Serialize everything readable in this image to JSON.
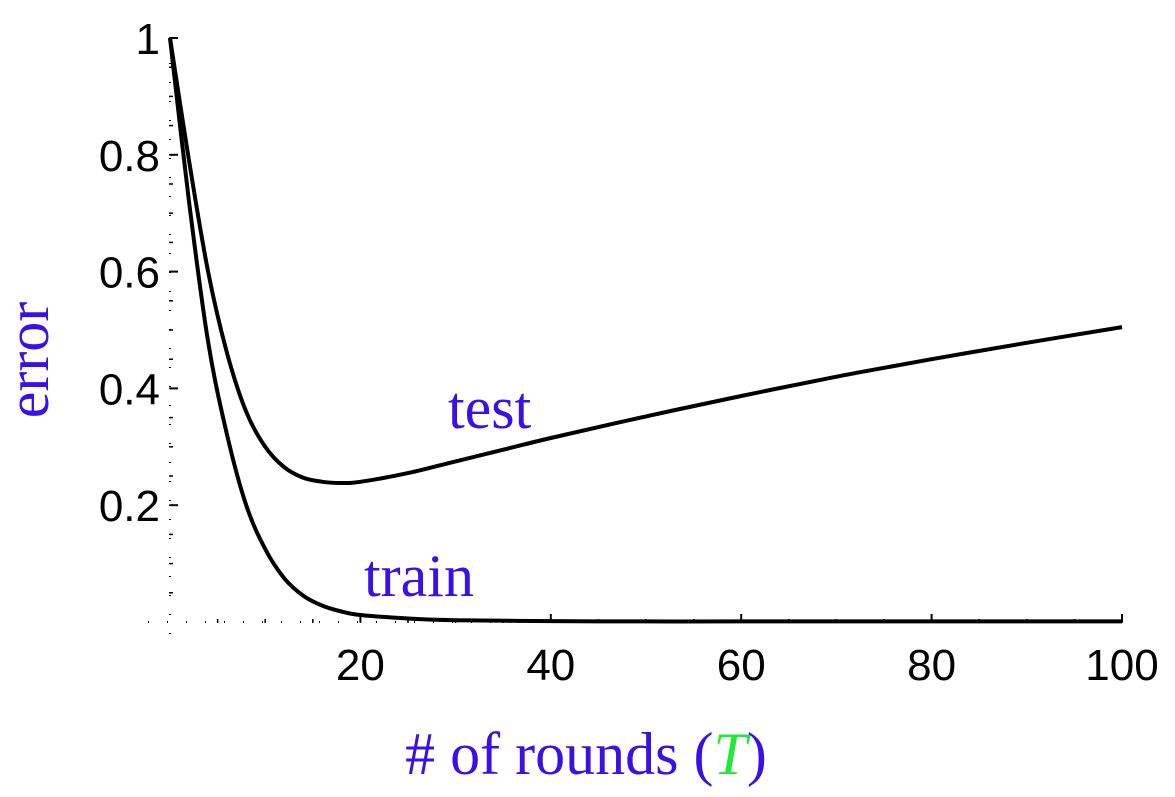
{
  "chart_data": {
    "type": "line",
    "title": "",
    "xlabel": {
      "prefix": "# of rounds (",
      "variable": "T",
      "suffix": ")"
    },
    "ylabel": "error",
    "xlim": [
      0,
      100
    ],
    "ylim": [
      0,
      1
    ],
    "x_ticks": [
      {
        "value": 20,
        "label": "20"
      },
      {
        "value": 40,
        "label": "40"
      },
      {
        "value": 60,
        "label": "60"
      },
      {
        "value": 80,
        "label": "80"
      },
      {
        "value": 100,
        "label": "100"
      }
    ],
    "y_ticks": [
      {
        "value": 0.2,
        "label": "0.2"
      },
      {
        "value": 0.4,
        "label": "0.4"
      },
      {
        "value": 0.6,
        "label": "0.6"
      },
      {
        "value": 0.8,
        "label": "0.8"
      },
      {
        "value": 1,
        "label": "1"
      }
    ],
    "grid": false,
    "series": [
      {
        "name": "test",
        "label": "test",
        "x": [
          0,
          2,
          4,
          6,
          8,
          10,
          12,
          14,
          16,
          18,
          20,
          25,
          30,
          35,
          40,
          50,
          60,
          70,
          80,
          90,
          100
        ],
        "values": [
          1.0,
          0.79,
          0.6,
          0.46,
          0.36,
          0.3,
          0.265,
          0.247,
          0.24,
          0.238,
          0.24,
          0.255,
          0.275,
          0.295,
          0.315,
          0.352,
          0.387,
          0.42,
          0.45,
          0.478,
          0.505
        ]
      },
      {
        "name": "train",
        "label": "train",
        "x": [
          0,
          2,
          4,
          6,
          8,
          10,
          12,
          14,
          16,
          18,
          20,
          25,
          30,
          40,
          50,
          60,
          80,
          100
        ],
        "values": [
          1.0,
          0.72,
          0.48,
          0.32,
          0.2,
          0.125,
          0.075,
          0.045,
          0.028,
          0.018,
          0.012,
          0.006,
          0.003,
          0.0015,
          0.001,
          0.001,
          0.001,
          0.001
        ]
      }
    ],
    "colors": {
      "line": "#000000",
      "axis": "#000000",
      "label": "#3a10e8",
      "variable": "#22e838"
    }
  }
}
